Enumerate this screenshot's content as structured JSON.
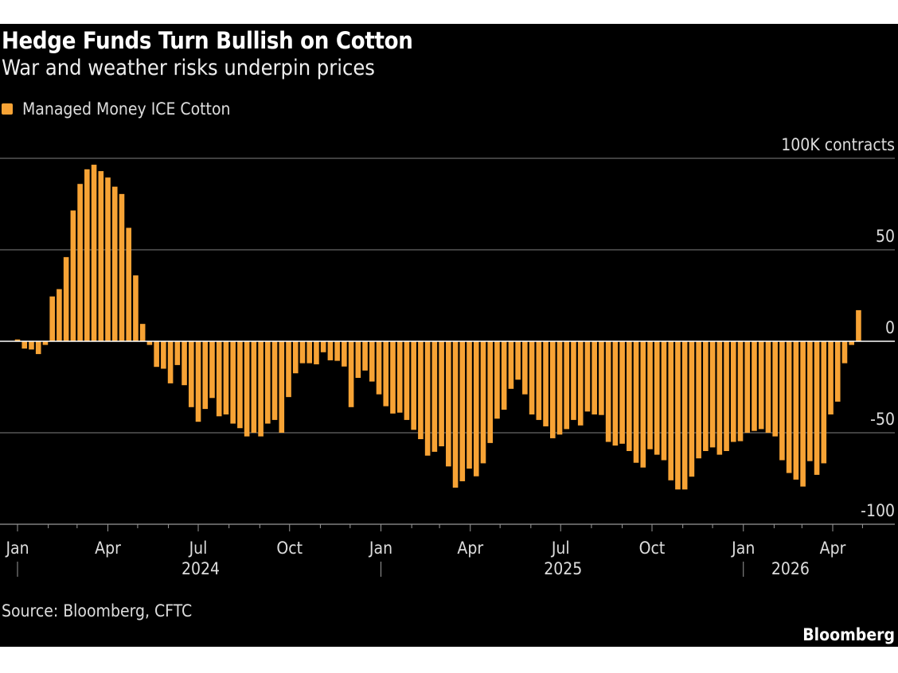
{
  "title": "Hedge Funds Turn Bullish on Cotton",
  "subtitle": "War and weather risks underpin prices",
  "source": "Source: Bloomberg, CFTC",
  "brand": "Bloomberg",
  "chart_data": {
    "type": "bar",
    "title": "Hedge Funds Turn Bullish on Cotton",
    "subtitle": "War and weather risks underpin prices",
    "legend": [
      {
        "name": "Managed Money ICE Cotton",
        "color": "#f7a335"
      }
    ],
    "legend_placement": "top-left",
    "ylabel": "100K contracts",
    "ylim": [
      -100,
      100
    ],
    "yticks": [
      {
        "value": 100,
        "label": "100K contracts"
      },
      {
        "value": 50,
        "label": "50"
      },
      {
        "value": 0,
        "label": "0"
      },
      {
        "value": -50,
        "label": "-50"
      },
      {
        "value": -100,
        "label": "-100"
      }
    ],
    "xticks": [
      {
        "date": "2024-01-01",
        "label": "Jan"
      },
      {
        "date": "2024-04-01",
        "label": "Apr"
      },
      {
        "date": "2024-07-01",
        "label": "Jul"
      },
      {
        "date": "2024-10-01",
        "label": "Oct"
      },
      {
        "date": "2025-01-01",
        "label": "Jan"
      },
      {
        "date": "2025-04-01",
        "label": "Apr"
      },
      {
        "date": "2025-07-01",
        "label": "Jul"
      },
      {
        "date": "2025-10-01",
        "label": "Oct"
      },
      {
        "date": "2026-01-01",
        "label": "Jan"
      },
      {
        "date": "2026-04-01",
        "label": "Apr"
      }
    ],
    "year_labels": [
      {
        "date": "2024-07-01",
        "label": "2024"
      },
      {
        "date": "2025-07-01",
        "label": "2025"
      },
      {
        "date": "2026-02-15",
        "label": "2026"
      }
    ],
    "grid": true,
    "y_axis_side": "right",
    "unit": "thousand contracts",
    "x": [
      "2023-12-26",
      "2024-01-02",
      "2024-01-09",
      "2024-01-16",
      "2024-01-23",
      "2024-01-30",
      "2024-02-06",
      "2024-02-13",
      "2024-02-20",
      "2024-02-27",
      "2024-03-05",
      "2024-03-12",
      "2024-03-19",
      "2024-03-26",
      "2024-04-02",
      "2024-04-09",
      "2024-04-16",
      "2024-04-23",
      "2024-04-30",
      "2024-05-07",
      "2024-05-14",
      "2024-05-21",
      "2024-05-28",
      "2024-06-04",
      "2024-06-11",
      "2024-06-18",
      "2024-06-25",
      "2024-07-02",
      "2024-07-09",
      "2024-07-16",
      "2024-07-23",
      "2024-07-30",
      "2024-08-06",
      "2024-08-13",
      "2024-08-20",
      "2024-08-27",
      "2024-09-03",
      "2024-09-10",
      "2024-09-17",
      "2024-09-24",
      "2024-10-01",
      "2024-10-08",
      "2024-10-15",
      "2024-10-22",
      "2024-10-29",
      "2024-11-05",
      "2024-11-12",
      "2024-11-19",
      "2024-11-26",
      "2024-12-03",
      "2024-12-10",
      "2024-12-17",
      "2024-12-24",
      "2024-12-31",
      "2025-01-07",
      "2025-01-14",
      "2025-01-21",
      "2025-01-28",
      "2025-02-04",
      "2025-02-11",
      "2025-02-18",
      "2025-02-25",
      "2025-03-04",
      "2025-03-11",
      "2025-03-18",
      "2025-03-25",
      "2025-04-01",
      "2025-04-08",
      "2025-04-15",
      "2025-04-22",
      "2025-04-29",
      "2025-05-06",
      "2025-05-13",
      "2025-05-20",
      "2025-05-27",
      "2025-06-03",
      "2025-06-10",
      "2025-06-17",
      "2025-06-24",
      "2025-07-01",
      "2025-07-08",
      "2025-07-15",
      "2025-07-22",
      "2025-07-29",
      "2025-08-05",
      "2025-08-12",
      "2025-08-19",
      "2025-08-26",
      "2025-09-02",
      "2025-09-09",
      "2025-09-16",
      "2025-09-23",
      "2025-09-30",
      "2025-10-07",
      "2025-10-14",
      "2025-10-21",
      "2025-10-28",
      "2025-11-04",
      "2025-11-11",
      "2025-11-18",
      "2025-11-25",
      "2025-12-02",
      "2025-12-09",
      "2025-12-16",
      "2025-12-23",
      "2025-12-30",
      "2026-01-06",
      "2026-01-13",
      "2026-01-20",
      "2026-01-27",
      "2026-02-03",
      "2026-02-10",
      "2026-02-17",
      "2026-02-24",
      "2026-03-03",
      "2026-03-10",
      "2026-03-17",
      "2026-03-24",
      "2026-03-31",
      "2026-04-07",
      "2026-04-14",
      "2026-04-21"
    ],
    "values": [
      1,
      -4,
      -4.5,
      -7,
      -2,
      24.5,
      28.5,
      46,
      71.5,
      86,
      94,
      96.5,
      93,
      89.5,
      84.5,
      80.5,
      62,
      36,
      9.5,
      -2,
      -14,
      -15,
      -23,
      -13,
      -24,
      -36,
      -44,
      -37,
      -31,
      -41,
      -40,
      -45,
      -47.5,
      -52,
      -50,
      -52,
      -45,
      -43,
      -50,
      -30.5,
      -17.5,
      -12,
      -12,
      -12.6,
      -6,
      -10.4,
      -10.7,
      -13.8,
      -36,
      -20,
      -16,
      -22,
      -29,
      -35.5,
      -39.5,
      -39,
      -43,
      -48.4,
      -53.5,
      -62.5,
      -60.4,
      -57.4,
      -68.4,
      -80,
      -76.5,
      -69.6,
      -73.8,
      -66.7,
      -55.6,
      -42.3,
      -37.4,
      -26,
      -21,
      -29,
      -40,
      -43,
      -46.5,
      -53,
      -51,
      -48,
      -43,
      -46,
      -38.4,
      -40,
      -40.3,
      -55,
      -57,
      -56,
      -60,
      -66.4,
      -69,
      -59,
      -62,
      -65,
      -76,
      -81,
      -81,
      -74,
      -64,
      -60,
      -58,
      -62,
      -60,
      -55,
      -54.6,
      -50,
      -49,
      -48,
      -50,
      -52,
      -65,
      -72,
      -75.6,
      -79.4,
      -65.5,
      -73,
      -66.7,
      -40,
      -33,
      -12,
      -2,
      17
    ]
  }
}
